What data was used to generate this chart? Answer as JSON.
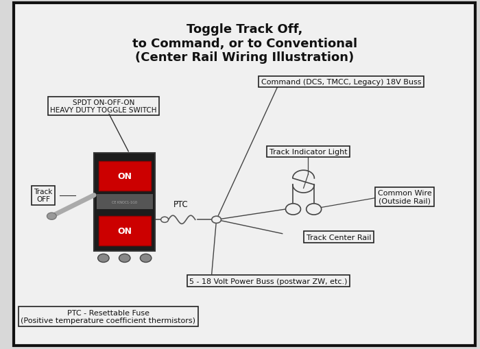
{
  "title_line1": "Toggle Track Off,",
  "title_line2": "to Command, or to Conventional",
  "title_line3": "(Center Rail Wiring Illustration)",
  "bg_color": "#d8d8d8",
  "inner_bg": "#f0f0f0",
  "border_color": "#111111",
  "text_color": "#111111",
  "label_command": "Command (DCS, TMCC, Legacy) 18V Buss",
  "label_spdt": "SPDT ON-OFF-ON\nHEAVY DUTY TOGGLE SWITCH",
  "label_track_off": "Track\nOFF",
  "label_ptc": "PTC",
  "label_ptc_bottom": "PTC - Resettable Fuse\n(Positive temperature coefficient thermistors)",
  "label_track_indicator": "Track Indicator Light",
  "label_common_wire": "Common Wire\n(Outside Rail)",
  "label_track_center": "Track Center Rail",
  "label_power_buss": "5 - 18 Volt Power Buss (postwar ZW, etc.)"
}
